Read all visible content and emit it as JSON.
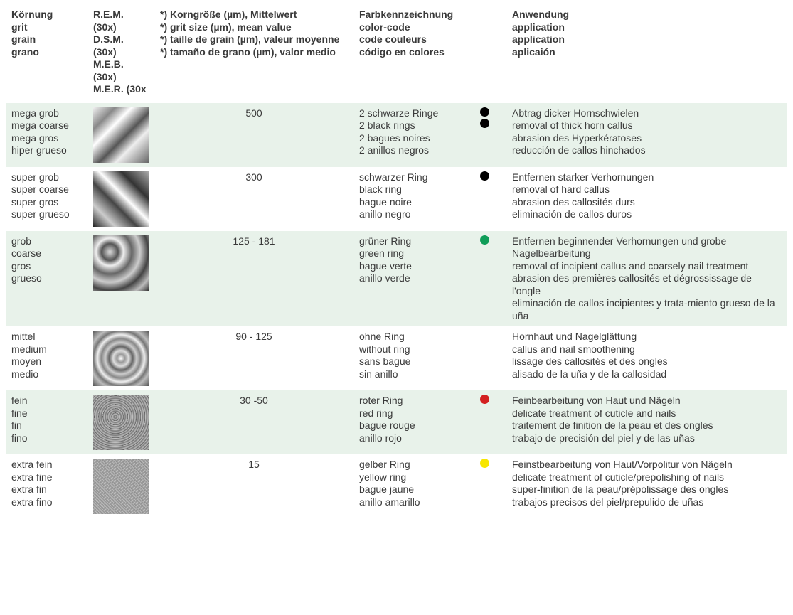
{
  "header": {
    "grit": [
      "Körnung",
      "grit",
      "grain",
      "grano"
    ],
    "img": [
      "R.E.M.  (30x)",
      "D.S.M.  (30x)",
      "M.E.B.  (30x)",
      "M.E.R.  (30x"
    ],
    "size": [
      "*) Korngröße (µm), Mittelwert",
      "*) grit size (µm), mean value",
      "*) taille de grain (µm), valeur moyenne",
      "*) tamaño de grano (µm), valor medio"
    ],
    "color": [
      "Farbkennzeichnung",
      "color-code",
      "code couleurs",
      "código en colores"
    ],
    "app": [
      "Anwendung",
      "application",
      "application",
      "aplicaión"
    ]
  },
  "rows": [
    {
      "grit": [
        "mega grob",
        "mega coarse",
        "mega gros",
        "hiper grueso"
      ],
      "size": "500",
      "color_text": [
        "2 schwarze Ringe",
        "2 black rings",
        "2 bagues noires",
        "2 anillos negros"
      ],
      "dots": [
        "#000000",
        "#000000"
      ],
      "app": [
        "Abtrag dicker Hornschwielen",
        "removal of thick horn callus",
        "abrasion des Hyperkératoses",
        "reducción de callos hinchados"
      ],
      "img_bg": "linear-gradient(135deg,#f0f0f0 0%,#888 20%,#fff 35%,#555 55%,#eee 70%,#666 100%)"
    },
    {
      "grit": [
        "super grob",
        "super coarse",
        "super gros",
        "super grueso"
      ],
      "size": "300",
      "color_text": [
        "schwarzer Ring",
        "black ring",
        "bague noire",
        "anillo negro"
      ],
      "dots": [
        "#000000"
      ],
      "app": [
        "Entfernen starker Verhornungen",
        "removal of hard callus",
        "abrasion des callosités durs",
        "eliminación de callos duros"
      ],
      "img_bg": "linear-gradient(45deg,#222 0%,#ccc 20%,#444 40%,#fff 55%,#333 75%,#aaa 100%)"
    },
    {
      "grit": [
        "grob",
        "coarse",
        "gros",
        "grueso"
      ],
      "size": "125 - 181",
      "color_text": [
        "grüner Ring",
        "green ring",
        "bague verte",
        "anillo verde"
      ],
      "dots": [
        "#0f9d58"
      ],
      "app": [
        "Entfernen beginnender Verhornungen und grobe Nagelbearbeitung",
        "removal of incipient callus and coarsely nail treatment",
        "abrasion des premières callosités et dégrossissage de l'ongle",
        "eliminación de callos incipientes y trata-miento grueso de la uña"
      ],
      "img_bg": "radial-gradient(circle at 30% 30%,#ddd 0%,#555 15%,#eee 25%,#666 40%,#ccc 55%,#444 70%,#bbb 85%,#333 100%)"
    },
    {
      "grit": [
        "mittel",
        "medium",
        "moyen",
        "medio"
      ],
      "size": "90 - 125",
      "color_text": [
        "ohne Ring",
        "without ring",
        "sans bague",
        "sin anillo"
      ],
      "dots": [],
      "app": [
        "Hornhaut und Nagelglättung",
        "callus and nail smoothening",
        "lissage des callosités et des ongles",
        "alisado de la uña y de la callosidad"
      ],
      "img_bg": "radial-gradient(circle at 50% 50%,#fff 0%,#999 10%,#ddd 20%,#666 30%,#ccc 40%,#888 50%,#eee 60%,#777 70%,#bbb 80%,#555 100%)"
    },
    {
      "grit": [
        "fein",
        "fine",
        "fin",
        "fino"
      ],
      "size": "30 -50",
      "color_text": [
        "roter Ring",
        "red ring",
        "bague rouge",
        "anillo rojo"
      ],
      "dots": [
        "#d32020"
      ],
      "app": [
        "Feinbearbeitung von Haut und Nägeln",
        "delicate treatment of cuticle and nails",
        "traitement de finition de la peau et des ongles",
        "trabajo de precisión del piel y de las uñas"
      ],
      "img_bg": "repeating-radial-gradient(circle at 40% 40%,#ccc 0px,#777 2px,#bbb 4px,#555 6px)"
    },
    {
      "grit": [
        "extra fein",
        "extra fine",
        "extra fin",
        "extra fino"
      ],
      "size": "15",
      "color_text": [
        "gelber Ring",
        "yellow ring",
        "bague jaune",
        "anillo amarillo"
      ],
      "dots": [
        "#f7e600"
      ],
      "app": [
        "Feinstbearbeitung von Haut/Vorpolitur von Nägeln",
        "delicate treatment of cuticle/prepolishing of nails",
        "super-finition de la peau/prépolissage des ongles",
        "trabajos precisos del piel/prepulido de uñas"
      ],
      "img_bg": "repeating-linear-gradient(45deg,#bbb 0px,#888 1px,#ccc 2px,#777 3px)"
    }
  ],
  "stripe_colors": {
    "even": "#e8f2ea",
    "odd": "#ffffff"
  }
}
